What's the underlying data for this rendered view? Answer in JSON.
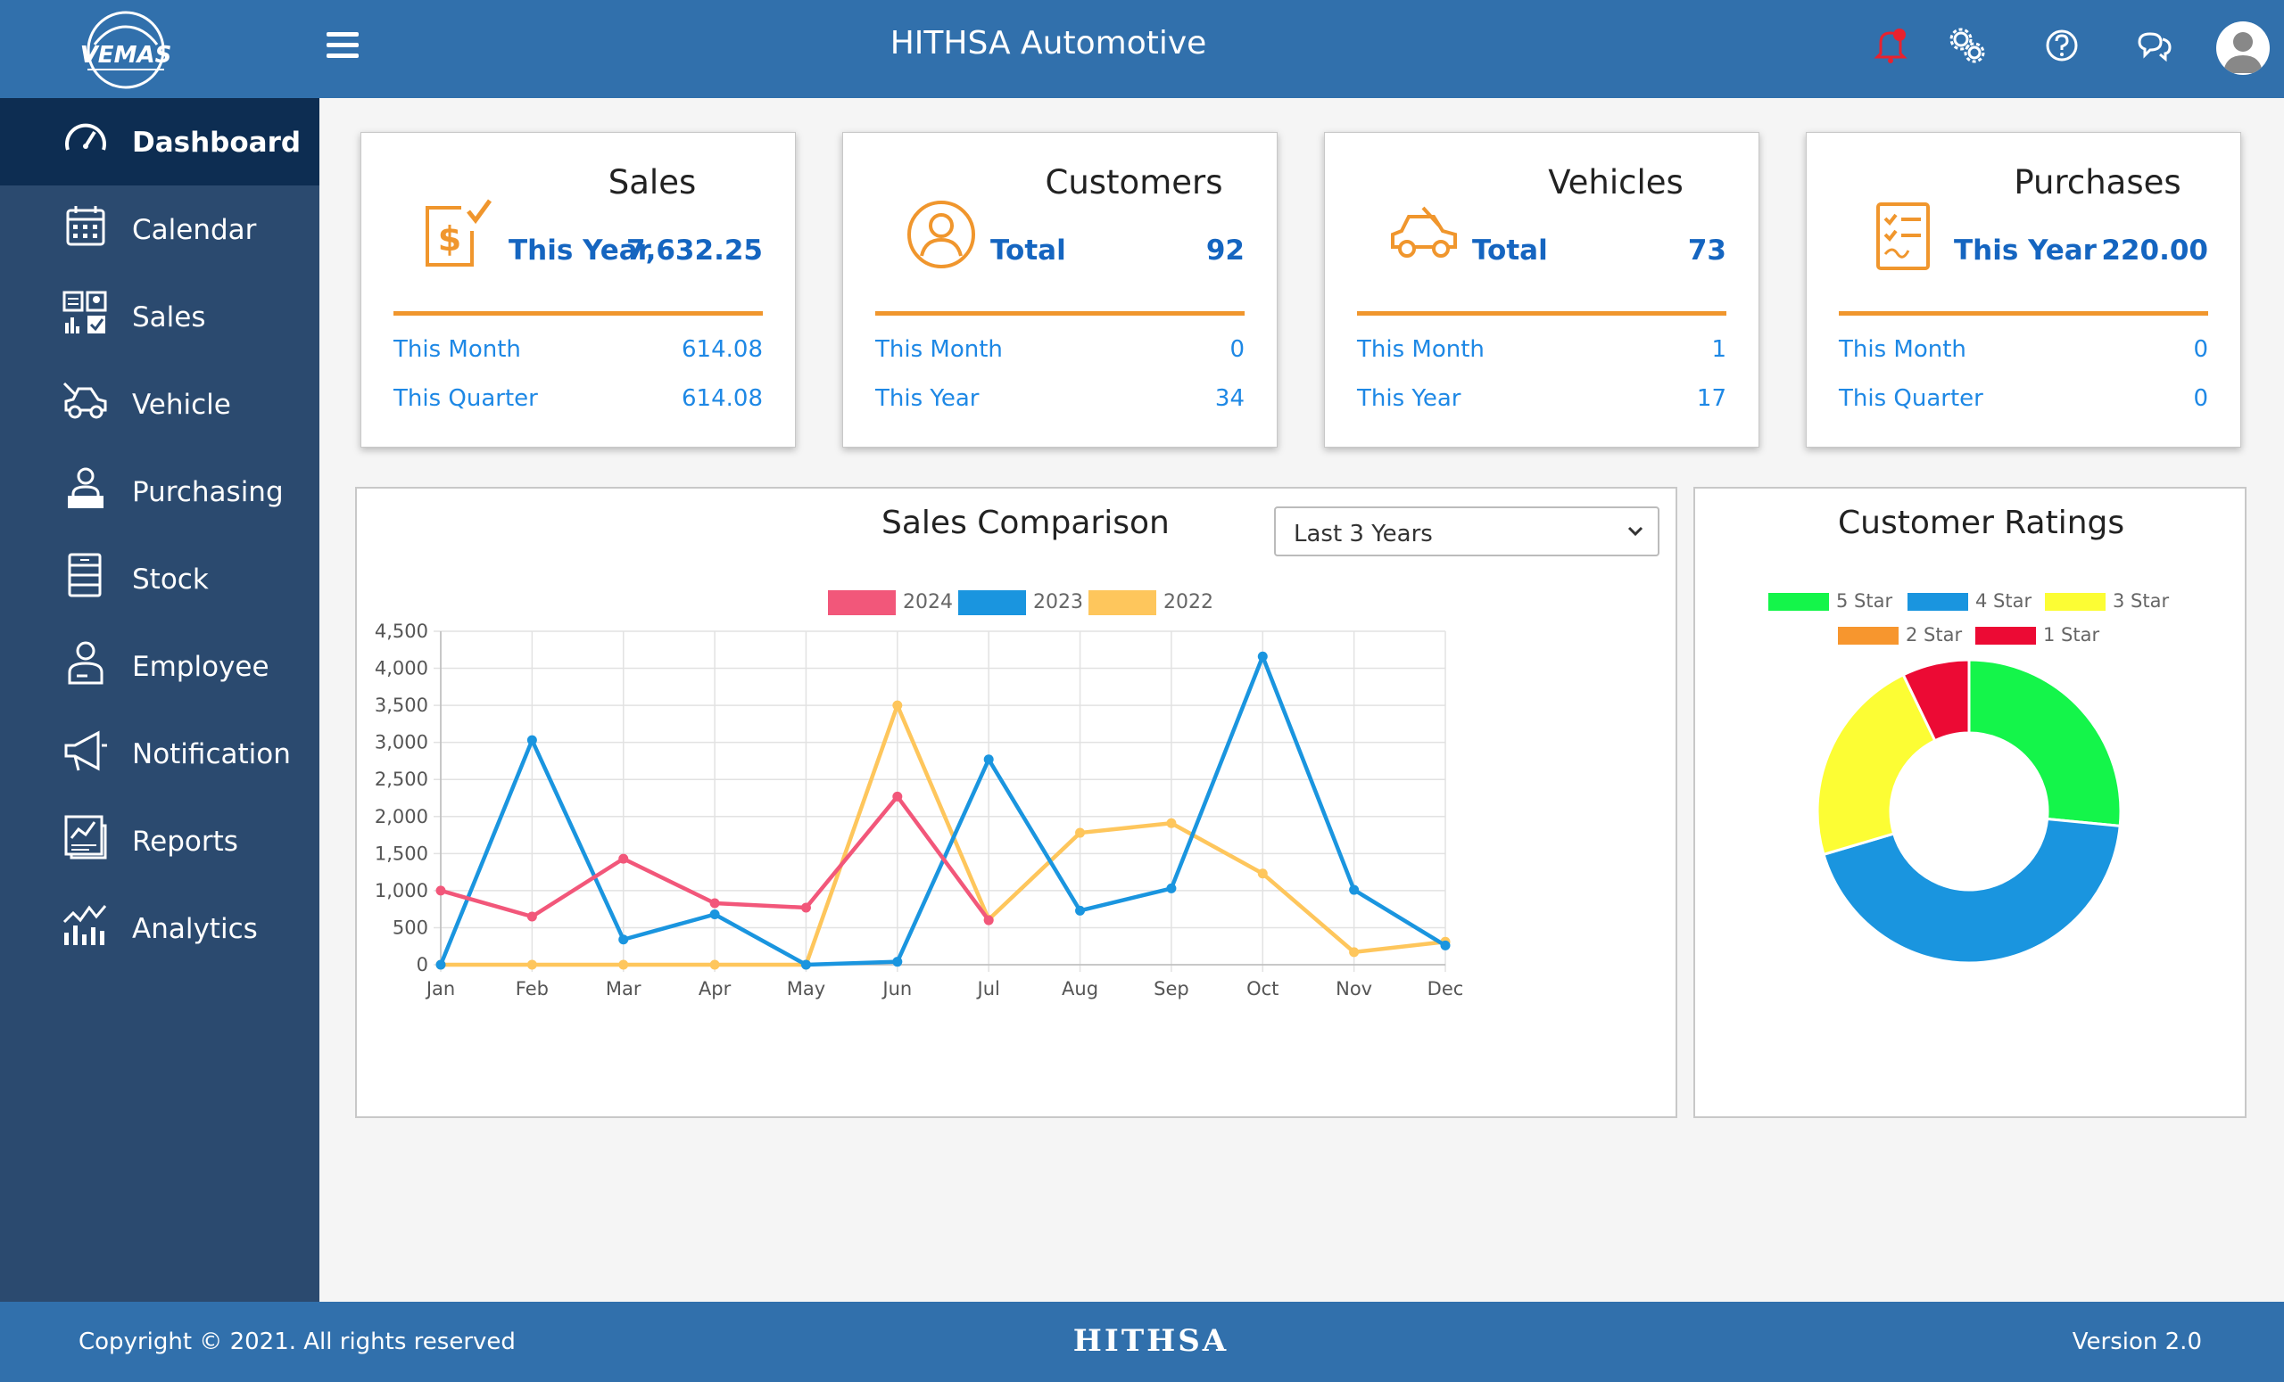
{
  "header": {
    "logo_text": "VEMAS",
    "title": "HITHSA Automotive",
    "icons": [
      "bell-icon",
      "settings-icon",
      "help-icon",
      "chat-icon",
      "user-avatar-icon"
    ]
  },
  "sidebar": {
    "items": [
      {
        "label": "Dashboard",
        "icon": "gauge-icon",
        "active": true
      },
      {
        "label": "Calendar",
        "icon": "calendar-icon"
      },
      {
        "label": "Sales",
        "icon": "sales-icon"
      },
      {
        "label": "Vehicle",
        "icon": "vehicle-icon"
      },
      {
        "label": "Purchasing",
        "icon": "purchasing-icon"
      },
      {
        "label": "Stock",
        "icon": "stock-icon"
      },
      {
        "label": "Employee",
        "icon": "employee-icon"
      },
      {
        "label": "Notification",
        "icon": "megaphone-icon"
      },
      {
        "label": "Reports",
        "icon": "reports-icon"
      },
      {
        "label": "Analytics",
        "icon": "analytics-icon"
      }
    ]
  },
  "cards": [
    {
      "title": "Sales",
      "icon": "dollar-document-icon",
      "main_label": "This Year",
      "main_value": "7,632.25",
      "rows": [
        {
          "label": "This Month",
          "value": "614.08"
        },
        {
          "label": "This Quarter",
          "value": "614.08"
        }
      ]
    },
    {
      "title": "Customers",
      "icon": "customer-icon",
      "main_label": "Total",
      "main_value": "92",
      "rows": [
        {
          "label": "This Month",
          "value": "0"
        },
        {
          "label": "This Year",
          "value": "34"
        }
      ]
    },
    {
      "title": "Vehicles",
      "icon": "car-icon",
      "main_label": "Total",
      "main_value": "73",
      "rows": [
        {
          "label": "This Month",
          "value": "1"
        },
        {
          "label": "This Year",
          "value": "17"
        }
      ]
    },
    {
      "title": "Purchases",
      "icon": "checklist-icon",
      "main_label": "This Year",
      "main_value": "220.00",
      "rows": [
        {
          "label": "This Month",
          "value": "0"
        },
        {
          "label": "This Quarter",
          "value": "0"
        }
      ]
    }
  ],
  "sales_comparison": {
    "title": "Sales Comparison",
    "period_select": "Last 3 Years"
  },
  "customer_ratings": {
    "title": "Customer Ratings"
  },
  "chart_data": [
    {
      "type": "line",
      "title": "Sales Comparison",
      "x": [
        "Jan",
        "Feb",
        "Mar",
        "Apr",
        "May",
        "Jun",
        "Jul",
        "Aug",
        "Sep",
        "Oct",
        "Nov",
        "Dec"
      ],
      "ylim": [
        0,
        4500
      ],
      "yticks": [
        0,
        500,
        1000,
        1500,
        2000,
        2500,
        3000,
        3500,
        4000,
        4500
      ],
      "ytick_labels": [
        "0",
        "500",
        "1,000",
        "1,500",
        "2,000",
        "2,500",
        "3,000",
        "3,500",
        "4,000",
        "4,500"
      ],
      "grid": true,
      "legend": "top",
      "series": [
        {
          "name": "2024",
          "color": "#f2577a",
          "values": [
            1000,
            650,
            1430,
            830,
            770,
            2270,
            600,
            null,
            null,
            null,
            null,
            null
          ]
        },
        {
          "name": "2023",
          "color": "#1a95df",
          "values": [
            0,
            3030,
            340,
            680,
            0,
            40,
            2770,
            730,
            1030,
            4160,
            1010,
            260
          ]
        },
        {
          "name": "2022",
          "color": "#fec65c",
          "values": [
            0,
            0,
            0,
            0,
            0,
            3500,
            610,
            1780,
            1910,
            1230,
            170,
            310
          ]
        }
      ]
    },
    {
      "type": "pie",
      "title": "Customer Ratings",
      "legend": "top",
      "labels": [
        "5 Star",
        "4 Star",
        "3 Star",
        "2 Star",
        "1 Star"
      ],
      "colors": [
        "#14f54a",
        "#1a95df",
        "#fcfd34",
        "#f7962e",
        "#ec0a34"
      ],
      "values": [
        26,
        43,
        22,
        0,
        7
      ]
    }
  ],
  "footer": {
    "copyright": "Copyright © 2021. All rights reserved",
    "brand": "HITHSA",
    "version": "Version 2.0"
  }
}
